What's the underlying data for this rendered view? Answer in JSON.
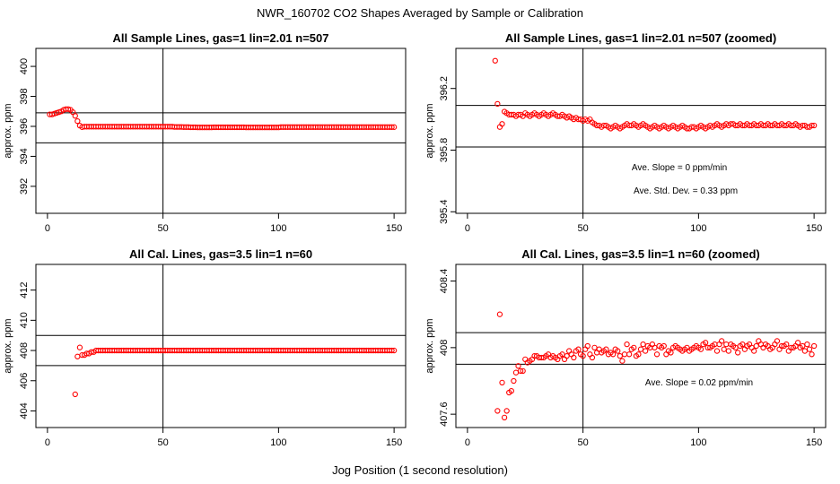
{
  "figure": {
    "title": "NWR_160702  CO2 Shapes Averaged by Sample or Calibration",
    "xlabel": "Jog Position (1 second resolution)"
  },
  "chart_data": [
    {
      "id": "p1",
      "type": "scatter",
      "title": "All Sample Lines, gas=1 lin=2.01 n=507",
      "ylabel": "approx. ppm",
      "xlim": [
        -5,
        155
      ],
      "ylim": [
        390.2,
        401.2
      ],
      "xticks": [
        0,
        50,
        100,
        150
      ],
      "yticks": [
        392,
        394,
        396,
        398,
        400
      ],
      "hlines": [
        396.9,
        394.9
      ],
      "vline": 50,
      "annotations": [],
      "series": {
        "x_start": 1,
        "x_end": 150,
        "values": [
          396.8,
          396.8,
          396.85,
          396.9,
          396.95,
          397.0,
          397.1,
          397.15,
          397.15,
          397.1,
          396.95,
          396.7,
          396.35,
          396.05,
          395.95,
          395.98,
          395.98,
          395.98,
          395.98,
          395.98,
          395.98,
          395.98,
          395.98,
          395.98,
          395.98,
          395.98,
          395.98,
          395.98,
          395.98,
          395.98,
          395.98,
          395.98,
          395.98,
          395.98,
          395.98,
          395.98,
          395.98,
          395.98,
          395.98,
          395.98,
          395.98,
          395.98,
          395.98,
          395.98,
          395.98,
          395.98,
          395.98,
          395.98,
          395.98,
          395.98,
          395.98,
          395.98,
          395.98,
          395.98,
          395.96,
          395.96,
          395.96,
          395.96,
          395.95,
          395.95,
          395.95,
          395.94,
          395.94,
          395.94,
          395.93,
          395.93,
          395.93,
          395.93,
          395.93,
          395.93,
          395.93,
          395.94,
          395.94,
          395.94,
          395.94,
          395.94,
          395.94,
          395.94,
          395.94,
          395.94,
          395.94,
          395.94,
          395.94,
          395.94,
          395.94,
          395.93,
          395.93,
          395.93,
          395.93,
          395.93,
          395.93,
          395.93,
          395.93,
          395.93,
          395.93,
          395.93,
          395.93,
          395.93,
          395.93,
          395.93,
          395.95,
          395.95,
          395.95,
          395.95,
          395.95,
          395.95,
          395.95,
          395.95,
          395.95,
          395.95,
          395.95,
          395.95,
          395.95,
          395.95,
          395.95,
          395.95,
          395.95,
          395.95,
          395.95,
          395.95,
          395.95,
          395.95,
          395.95,
          395.95,
          395.95,
          395.95,
          395.95,
          395.95,
          395.95,
          395.95,
          395.95,
          395.95,
          395.95,
          395.95,
          395.95,
          395.95,
          395.95,
          395.95,
          395.95,
          395.95,
          395.95,
          395.95,
          395.95,
          395.95,
          395.95,
          395.95,
          395.95,
          395.95,
          395.95,
          395.95
        ]
      }
    },
    {
      "id": "p2",
      "type": "scatter",
      "title": "All Sample Lines, gas=1 lin=2.01 n=507 (zoomed)",
      "ylabel": "approx. ppm",
      "xlim": [
        -5,
        155
      ],
      "ylim": [
        395.39,
        396.46
      ],
      "xticks": [
        0,
        50,
        100,
        150
      ],
      "yticks": [
        395.4,
        395.8,
        396.2
      ],
      "hlines": [
        396.09,
        395.82
      ],
      "vline": 50,
      "annotations": [
        "Ave. Slope =  0  ppm/min",
        "Ave. Std. Dev. =  0.33  ppm"
      ],
      "series": {
        "x_start": 12,
        "x_end": 150,
        "values": [
          396.38,
          396.1,
          395.95,
          395.97,
          396.05,
          396.04,
          396.03,
          396.03,
          396.03,
          396.02,
          396.03,
          396.03,
          396.02,
          396.04,
          396.03,
          396.02,
          396.03,
          396.04,
          396.03,
          396.02,
          396.03,
          396.04,
          396.03,
          396.02,
          396.03,
          396.04,
          396.03,
          396.02,
          396.02,
          396.03,
          396.02,
          396.01,
          396.02,
          396.01,
          396.0,
          396.01,
          396.0,
          396.0,
          395.99,
          396.0,
          395.99,
          396.0,
          395.98,
          395.97,
          395.96,
          395.96,
          395.95,
          395.96,
          395.96,
          395.95,
          395.94,
          395.95,
          395.96,
          395.95,
          395.94,
          395.95,
          395.96,
          395.97,
          395.96,
          395.96,
          395.97,
          395.96,
          395.95,
          395.96,
          395.97,
          395.96,
          395.95,
          395.94,
          395.95,
          395.96,
          395.95,
          395.94,
          395.95,
          395.96,
          395.95,
          395.94,
          395.95,
          395.96,
          395.95,
          395.94,
          395.95,
          395.96,
          395.95,
          395.94,
          395.94,
          395.95,
          395.95,
          395.94,
          395.95,
          395.96,
          395.95,
          395.94,
          395.95,
          395.96,
          395.95,
          395.96,
          395.97,
          395.96,
          395.95,
          395.96,
          395.97,
          395.96,
          395.97,
          395.97,
          395.96,
          395.96,
          395.97,
          395.96,
          395.96,
          395.97,
          395.96,
          395.96,
          395.97,
          395.96,
          395.96,
          395.97,
          395.96,
          395.96,
          395.97,
          395.96,
          395.96,
          395.97,
          395.96,
          395.96,
          395.97,
          395.96,
          395.96,
          395.97,
          395.96,
          395.96,
          395.97,
          395.96,
          395.95,
          395.96,
          395.96,
          395.95,
          395.95,
          395.96,
          395.96
        ]
      }
    },
    {
      "id": "p3",
      "type": "scatter",
      "title": "All Cal. Lines, gas=3.5 lin=1 n=60",
      "ylabel": "approx. ppm",
      "xlim": [
        -5,
        155
      ],
      "ylim": [
        402.9,
        413.7
      ],
      "xticks": [
        0,
        50,
        100,
        150
      ],
      "yticks": [
        404,
        406,
        408,
        410,
        412
      ],
      "hlines": [
        409.0,
        407.0
      ],
      "vline": 50,
      "annotations": [],
      "series": {
        "x_start": 12,
        "x_end": 150,
        "values": [
          405.1,
          407.6,
          408.2,
          407.7,
          407.7,
          407.8,
          407.8,
          407.9,
          407.9,
          408.0,
          408.0,
          408.0,
          408.0,
          408.0,
          408.0,
          408.0,
          408.0,
          408.0,
          408.0,
          408.0,
          408.0,
          408.0,
          408.0,
          408.0,
          408.0,
          408.0,
          408.0,
          408.0,
          408.0,
          408.0,
          408.0,
          408.0,
          408.0,
          408.0,
          408.0,
          408.0,
          408.0,
          408.0,
          408.0,
          408.0,
          408.0,
          408.0,
          408.0,
          408.0,
          408.0,
          408.0,
          408.0,
          408.0,
          408.0,
          408.0,
          408.0,
          408.0,
          408.0,
          408.0,
          408.0,
          408.0,
          408.0,
          408.0,
          408.0,
          408.0,
          408.0,
          408.0,
          408.0,
          408.0,
          408.0,
          408.0,
          408.0,
          408.0,
          408.0,
          408.0,
          408.0,
          408.0,
          408.0,
          408.0,
          408.0,
          408.0,
          408.0,
          408.0,
          408.0,
          408.0,
          408.0,
          408.0,
          408.0,
          408.0,
          408.0,
          408.0,
          408.0,
          408.0,
          408.0,
          408.0,
          408.0,
          408.0,
          408.0,
          408.0,
          408.0,
          408.0,
          408.0,
          408.0,
          408.0,
          408.0,
          408.0,
          408.0,
          408.0,
          408.0,
          408.0,
          408.0,
          408.0,
          408.0,
          408.0,
          408.0,
          408.0,
          408.0,
          408.0,
          408.0,
          408.0,
          408.0,
          408.0,
          408.0,
          408.0,
          408.0,
          408.0,
          408.0,
          408.0,
          408.0,
          408.0,
          408.0,
          408.0,
          408.0,
          408.0,
          408.0,
          408.0,
          408.0,
          408.0,
          408.0,
          408.0,
          408.0,
          408.0,
          408.0,
          408.0
        ]
      }
    },
    {
      "id": "p4",
      "type": "scatter",
      "title": "All Cal. Lines, gas=3.5 lin=1 n=60 (zoomed)",
      "ylabel": "approx. ppm",
      "xlim": [
        -5,
        155
      ],
      "ylim": [
        407.52,
        408.5
      ],
      "xticks": [
        0,
        50,
        100,
        150
      ],
      "yticks": [
        407.6,
        408.0,
        408.4
      ],
      "hlines": [
        408.09,
        407.9
      ],
      "vline": 50,
      "annotations": [
        "Ave. Slope =  0.02  ppm/min"
      ],
      "series": {
        "x_start": 13,
        "x_end": 150,
        "values": [
          407.62,
          408.2,
          407.79,
          407.58,
          407.62,
          407.73,
          407.74,
          407.8,
          407.85,
          407.89,
          407.86,
          407.86,
          407.93,
          407.91,
          407.92,
          407.93,
          407.95,
          407.95,
          407.94,
          407.94,
          407.94,
          407.95,
          407.96,
          407.94,
          407.95,
          407.94,
          407.93,
          407.95,
          407.96,
          407.93,
          407.95,
          407.98,
          407.96,
          407.94,
          407.98,
          407.99,
          407.96,
          407.95,
          407.99,
          408.01,
          407.96,
          407.94,
          408.0,
          407.97,
          407.99,
          407.97,
          407.98,
          407.99,
          407.96,
          407.97,
          407.96,
          407.99,
          407.98,
          407.95,
          407.92,
          407.96,
          408.02,
          407.96,
          407.99,
          408.0,
          407.95,
          407.96,
          407.99,
          408.02,
          407.98,
          408.01,
          408.0,
          408.02,
          408.0,
          407.96,
          408.01,
          408.0,
          408.01,
          407.96,
          407.98,
          407.97,
          408.0,
          408.01,
          408.0,
          407.99,
          407.98,
          407.99,
          408.0,
          407.98,
          407.99,
          408.0,
          408.01,
          408.0,
          407.99,
          408.02,
          408.03,
          408.0,
          408.0,
          408.01,
          408.02,
          407.98,
          408.02,
          408.04,
          407.99,
          408.02,
          407.98,
          408.02,
          408.01,
          408.0,
          407.97,
          408.01,
          408.02,
          407.99,
          408.01,
          408.02,
          408.0,
          407.98,
          408.01,
          408.04,
          408.02,
          408.0,
          408.02,
          408.01,
          407.99,
          408.0,
          408.02,
          408.04,
          407.99,
          408.01,
          408.01,
          408.02,
          407.98,
          408.0,
          408.0,
          408.01,
          408.03,
          408.0,
          408.01,
          407.98,
          408.02,
          407.99,
          407.96,
          408.01
        ]
      }
    }
  ]
}
